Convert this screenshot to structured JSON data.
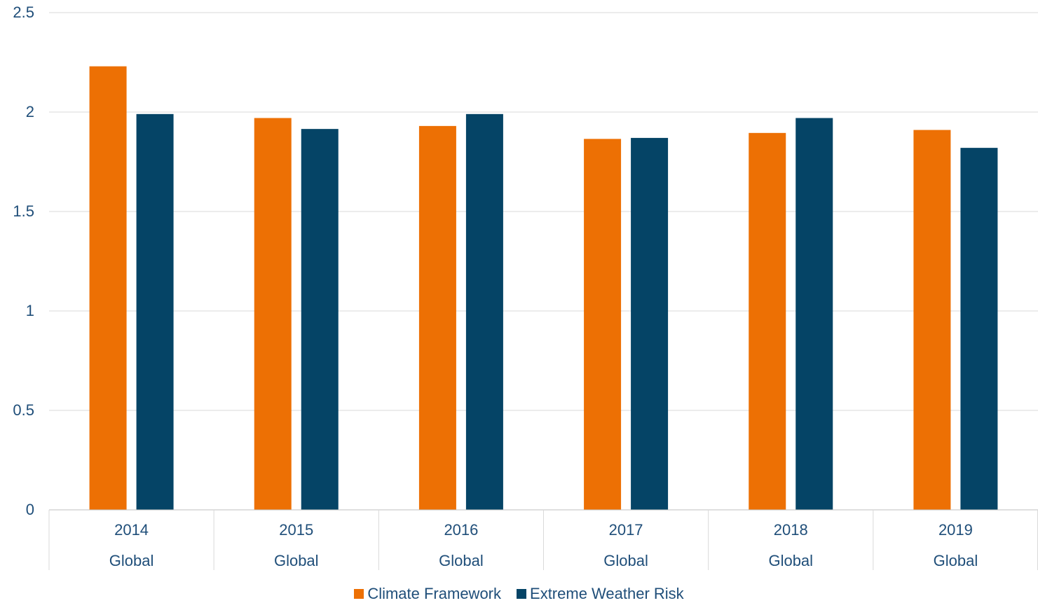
{
  "chart_data": {
    "type": "bar",
    "categories": [
      "2014",
      "2015",
      "2016",
      "2017",
      "2018",
      "2019"
    ],
    "group_labels": [
      "Global",
      "Global",
      "Global",
      "Global",
      "Global",
      "Global"
    ],
    "series": [
      {
        "name": "Climate Framework",
        "color": "#ed7004",
        "values": [
          2.23,
          1.97,
          1.93,
          1.865,
          1.895,
          1.91
        ]
      },
      {
        "name": "Extreme Weather Risk",
        "color": "#054466",
        "values": [
          1.99,
          1.915,
          1.99,
          1.87,
          1.97,
          1.82
        ]
      }
    ],
    "ylim": [
      0,
      2.5
    ],
    "yticks": [
      "0",
      "0.5",
      "1",
      "1.5",
      "2",
      "2.5"
    ],
    "grid": true,
    "legend_position": "bottom"
  }
}
